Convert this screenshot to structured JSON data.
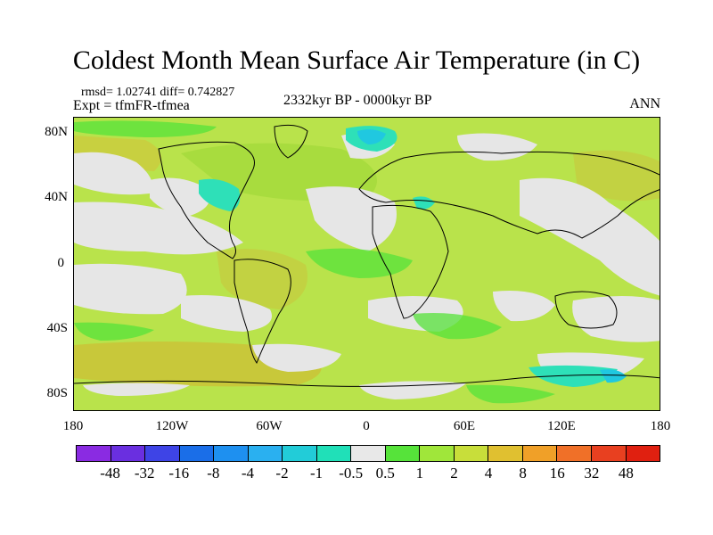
{
  "title": "Coldest Month Mean Surface Air Temperature (in C)",
  "stats": "rmsd= 1.02741  diff= 0.742827",
  "experiment": "Expt = tfmFR-tfmea",
  "period": "2332kyr BP - 0000kyr BP",
  "season": "ANN",
  "y_axis_labels": [
    "80N",
    "40N",
    "0",
    "40S",
    "80S"
  ],
  "x_axis_labels": [
    "180",
    "120W",
    "60W",
    "0",
    "60E",
    "120E",
    "180"
  ],
  "colorbar": {
    "labels": [
      "-48",
      "-32",
      "-16",
      "-8",
      "-4",
      "-2",
      "-1",
      "-0.5",
      "0.5",
      "1",
      "2",
      "4",
      "8",
      "16",
      "32",
      "48"
    ],
    "colors": [
      "#8a2be2",
      "#6a2fe0",
      "#3e44e6",
      "#1a6ee8",
      "#1e90f0",
      "#2ab0f0",
      "#22ccd8",
      "#20e0b8",
      "#e8e8e8",
      "#56e33a",
      "#a0e63a",
      "#c8de3a",
      "#e0c030",
      "#f0a028",
      "#f07028",
      "#e84020",
      "#e02010"
    ]
  },
  "legend_colors": {
    "neutral": "#e6e6e6",
    "warm_1": "#56e33a",
    "warm_2": "#b9e34b",
    "warm_4": "#c8c83a",
    "cool_1": "#2ee0b8",
    "cool_2": "#20c8e0"
  }
}
